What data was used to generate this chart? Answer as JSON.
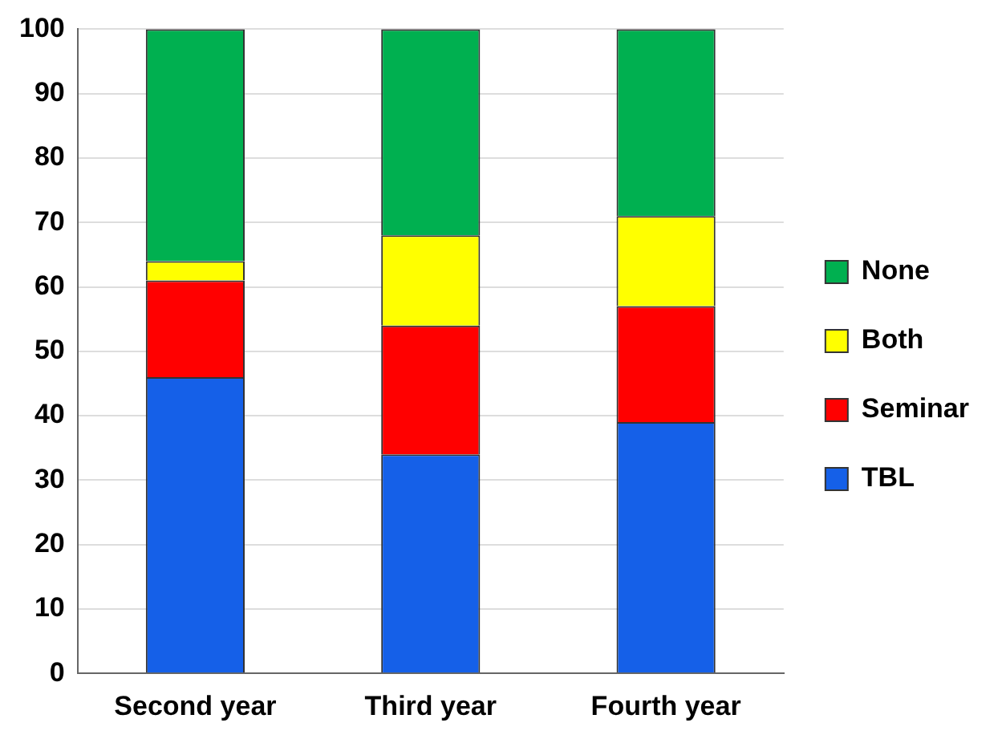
{
  "chart_data": {
    "type": "bar",
    "stacked": true,
    "categories": [
      "Second year",
      "Third year",
      "Fourth year"
    ],
    "series": [
      {
        "name": "TBL",
        "color": "#1560e8",
        "values": [
          46,
          34,
          39
        ]
      },
      {
        "name": "Seminar",
        "color": "#ff0000",
        "values": [
          15,
          20,
          18
        ]
      },
      {
        "name": "Both",
        "color": "#ffff00",
        "values": [
          3,
          14,
          14
        ]
      },
      {
        "name": "None",
        "color": "#00b050",
        "values": [
          36,
          32,
          29
        ]
      }
    ],
    "ylim": [
      0,
      100
    ],
    "yticks": [
      0,
      10,
      20,
      30,
      40,
      50,
      60,
      70,
      80,
      90,
      100
    ],
    "grid": "y",
    "legend": "right"
  }
}
